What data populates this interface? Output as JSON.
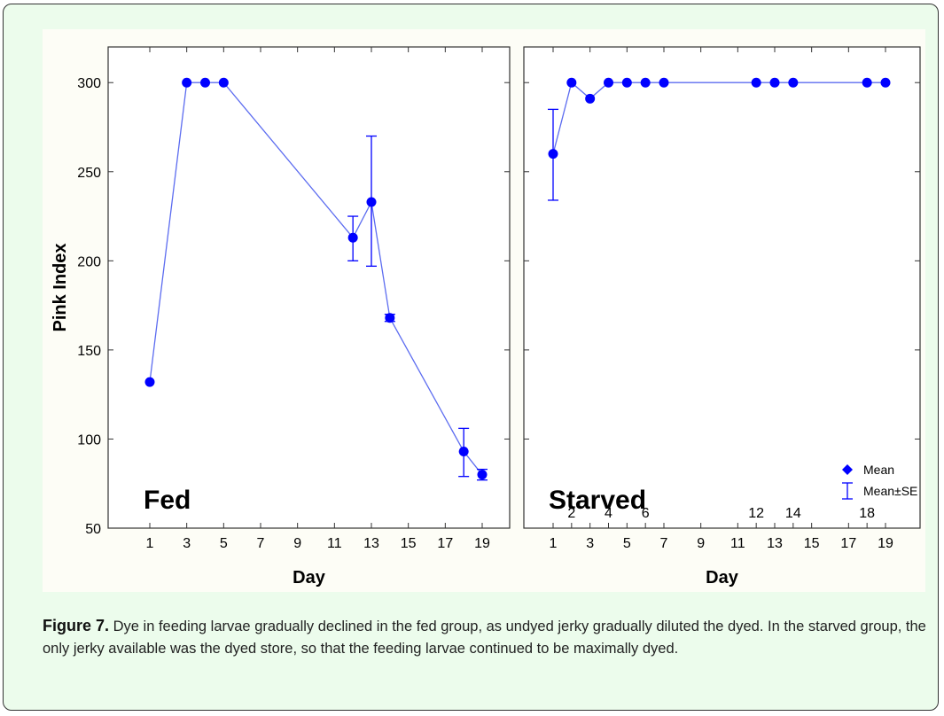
{
  "chart_data": {
    "type": "scatter",
    "ylabel": "Pink Index",
    "xlabel": "Day",
    "ylim": [
      50,
      320
    ],
    "yticks": [
      50,
      100,
      150,
      200,
      250,
      300
    ],
    "colors": {
      "series": "#0000ff",
      "line": "#5c6cf0"
    },
    "legend": {
      "placement": "bottom-right",
      "mean_label": "Mean",
      "se_label": "Mean±SE"
    },
    "panels": [
      {
        "label": "Fed",
        "xticks": [
          "1",
          "3",
          "5",
          "7",
          "9",
          "11",
          "13",
          "15",
          "17",
          "19"
        ],
        "points": [
          {
            "day": 1,
            "mean": 132
          },
          {
            "day": 3,
            "mean": 300
          },
          {
            "day": 4,
            "mean": 300
          },
          {
            "day": 5,
            "mean": 300
          },
          {
            "day": 12,
            "mean": 213,
            "se_low": 200,
            "se_high": 225
          },
          {
            "day": 13,
            "mean": 233,
            "se_low": 197,
            "se_high": 270
          },
          {
            "day": 14,
            "mean": 168,
            "se_low": 166,
            "se_high": 170
          },
          {
            "day": 18,
            "mean": 93,
            "se_low": 79,
            "se_high": 106
          },
          {
            "day": 19,
            "mean": 80,
            "se_low": 77,
            "se_high": 83
          }
        ]
      },
      {
        "label": "Starved",
        "xticks": [
          "1",
          "3",
          "5",
          "7",
          "9",
          "11",
          "13",
          "15",
          "17",
          "19"
        ],
        "xticks_upper": [
          "2",
          "4",
          "6",
          "12",
          "14",
          "18"
        ],
        "points": [
          {
            "day": 1,
            "mean": 260,
            "se_low": 234,
            "se_high": 285
          },
          {
            "day": 2,
            "mean": 300
          },
          {
            "day": 3,
            "mean": 291
          },
          {
            "day": 4,
            "mean": 300
          },
          {
            "day": 5,
            "mean": 300
          },
          {
            "day": 6,
            "mean": 300
          },
          {
            "day": 7,
            "mean": 300
          },
          {
            "day": 12,
            "mean": 300
          },
          {
            "day": 13,
            "mean": 300
          },
          {
            "day": 14,
            "mean": 300
          },
          {
            "day": 18,
            "mean": 300
          },
          {
            "day": 19,
            "mean": 300
          }
        ]
      }
    ]
  },
  "caption": {
    "label": "Figure 7.",
    "text": " Dye in feeding larvae gradually declined in the fed group, as undyed jerky gradually diluted the dyed. In the starved group, the only jerky available was the dyed store, so that the feeding larvae continued to be maximally dyed."
  }
}
